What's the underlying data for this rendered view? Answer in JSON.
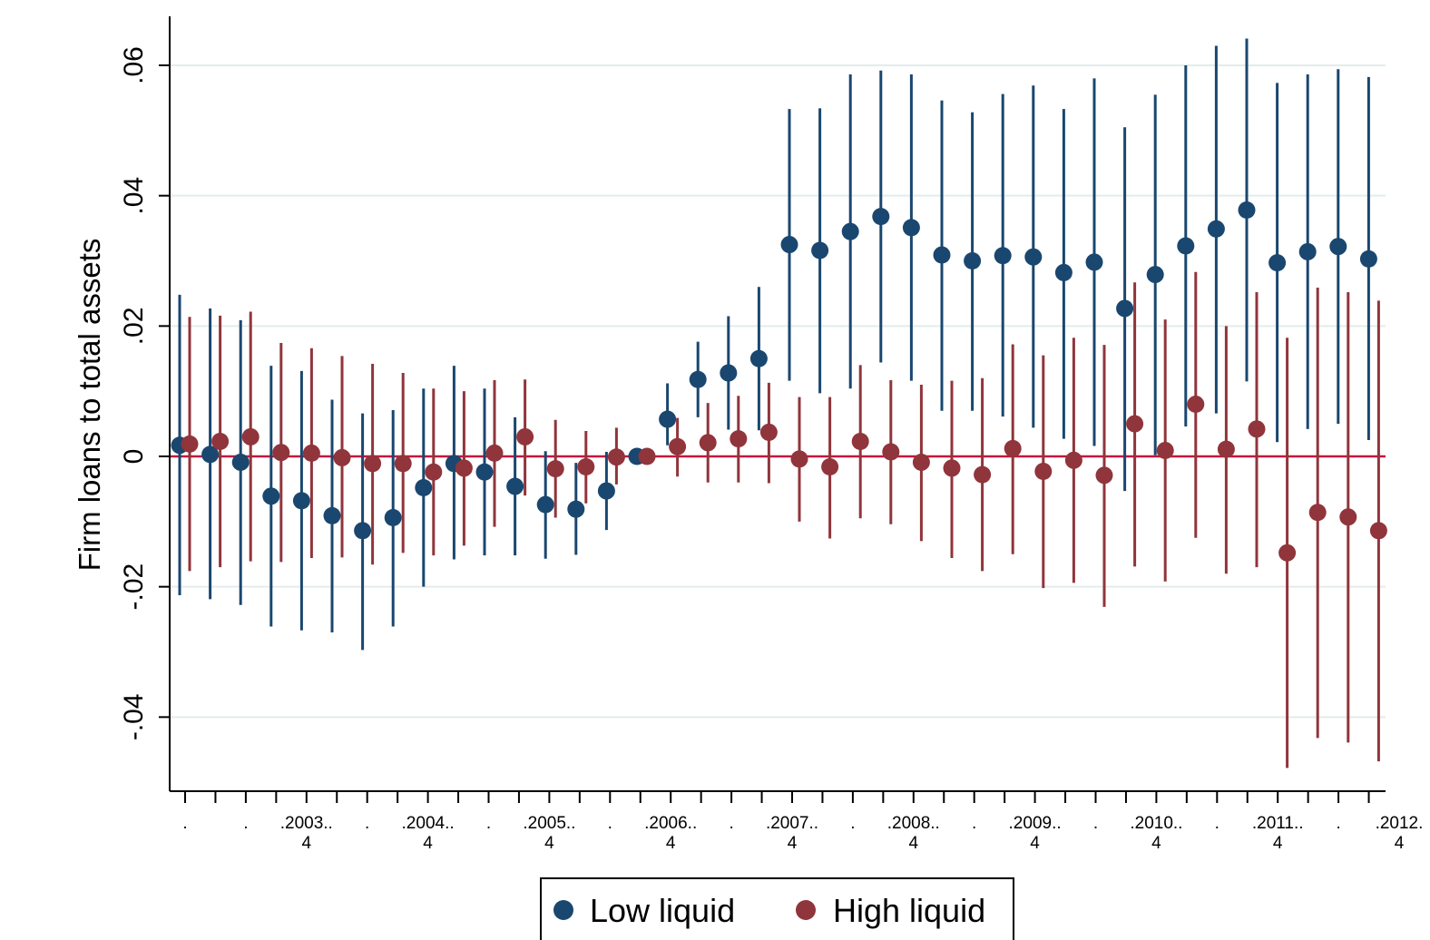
{
  "chart_data": {
    "type": "scatter",
    "title": "",
    "xlabel": "",
    "ylabel": "Firm loans to total assets",
    "ylim": [
      -0.052,
      0.067
    ],
    "yticks": [
      {
        "value": -0.04,
        "label": "-.04"
      },
      {
        "value": -0.02,
        "label": "-.02"
      },
      {
        "value": 0,
        "label": "0"
      },
      {
        "value": 0.02,
        "label": ".02"
      },
      {
        "value": 0.04,
        "label": ".04"
      },
      {
        "value": 0.06,
        "label": ".06"
      }
    ],
    "grid": true,
    "reference_line": 0,
    "x_tick_labels": [
      {
        "line1": ".",
        "line2": ""
      },
      {
        "line1": ".",
        "line2": ""
      },
      {
        "line1": ".2003..",
        "line2": "4"
      },
      {
        "line1": ".",
        "line2": ""
      },
      {
        "line1": ".2004..",
        "line2": "4"
      },
      {
        "line1": ".",
        "line2": ""
      },
      {
        "line1": ".2005..",
        "line2": "4"
      },
      {
        "line1": ".",
        "line2": ""
      },
      {
        "line1": ".2006..",
        "line2": "4"
      },
      {
        "line1": ".",
        "line2": ""
      },
      {
        "line1": ".2007..",
        "line2": "4"
      },
      {
        "line1": ".",
        "line2": ""
      },
      {
        "line1": ".2008..",
        "line2": "4"
      },
      {
        "line1": ".",
        "line2": ""
      },
      {
        "line1": ".2009..",
        "line2": "4"
      },
      {
        "line1": ".",
        "line2": ""
      },
      {
        "line1": ".2010..",
        "line2": "4"
      },
      {
        "line1": ".",
        "line2": ""
      },
      {
        "line1": ".2011..",
        "line2": "4"
      },
      {
        "line1": ".",
        "line2": ""
      },
      {
        "line1": ".2012.",
        "line2": "4"
      }
    ],
    "legend_position": "bottom",
    "colors": {
      "low": "#1a476f",
      "high": "#90353b",
      "reference": "#c4173e",
      "grid": "#e3ecec"
    },
    "series": [
      {
        "name": "Low liquid",
        "values": [
          0.0017,
          0.0003,
          -0.0009,
          -0.0061,
          -0.0068,
          -0.0091,
          -0.0114,
          -0.0094,
          -0.0048,
          -0.0011,
          -0.0024,
          -0.0046,
          -0.0074,
          -0.0081,
          -0.0053,
          0.0,
          0.0057,
          0.0118,
          0.0128,
          0.015,
          0.0325,
          0.0316,
          0.0345,
          0.0368,
          0.0351,
          0.0309,
          0.03,
          0.0308,
          0.0306,
          0.0282,
          0.0298,
          0.0227,
          0.0279,
          0.0323,
          0.0349,
          0.0378,
          0.0297,
          0.0314,
          0.0322,
          0.0303
        ],
        "lower": [
          -0.0213,
          -0.0219,
          -0.0228,
          -0.0261,
          -0.0267,
          -0.027,
          -0.0297,
          -0.0261,
          -0.02,
          -0.0158,
          -0.0152,
          -0.0152,
          -0.0157,
          -0.0151,
          -0.0113,
          0.0,
          0.0017,
          0.006,
          0.0041,
          0.004,
          0.0116,
          0.0097,
          0.0104,
          0.0144,
          0.0116,
          0.007,
          0.007,
          0.0061,
          0.0044,
          0.0027,
          0.0016,
          -0.0053,
          0.0002,
          0.0046,
          0.0066,
          0.0115,
          0.0022,
          0.0042,
          0.005,
          0.0025
        ],
        "upper": [
          0.0248,
          0.0227,
          0.0209,
          0.0139,
          0.0131,
          0.0087,
          0.0066,
          0.0071,
          0.0104,
          0.0139,
          0.0104,
          0.006,
          0.0008,
          -0.001,
          0.0007,
          0.0,
          0.0112,
          0.0176,
          0.0215,
          0.026,
          0.0533,
          0.0534,
          0.0586,
          0.0592,
          0.0586,
          0.0546,
          0.0528,
          0.0556,
          0.0569,
          0.0533,
          0.058,
          0.0505,
          0.0555,
          0.06,
          0.063,
          0.0641,
          0.0573,
          0.0586,
          0.0594,
          0.0582
        ]
      },
      {
        "name": "High liquid",
        "values": [
          0.0019,
          0.0023,
          0.003,
          0.0006,
          0.0005,
          -0.0002,
          -0.0011,
          -0.0011,
          -0.0024,
          -0.0018,
          0.0005,
          0.003,
          -0.0019,
          -0.0016,
          -0.0001,
          0.0,
          0.0015,
          0.0021,
          0.0027,
          0.0037,
          -0.0004,
          -0.0016,
          0.0023,
          0.0007,
          -0.0009,
          -0.0018,
          -0.0028,
          0.0012,
          -0.0023,
          -0.0006,
          -0.0029,
          0.005,
          0.0009,
          0.008,
          0.0011,
          0.0042,
          -0.0148,
          -0.0086,
          -0.0093,
          -0.0114
        ],
        "lower": [
          -0.0176,
          -0.017,
          -0.0161,
          -0.0162,
          -0.0156,
          -0.0155,
          -0.0166,
          -0.0148,
          -0.0152,
          -0.0137,
          -0.0108,
          -0.006,
          -0.0094,
          -0.0072,
          -0.0043,
          0.0,
          -0.0031,
          -0.004,
          -0.004,
          -0.0041,
          -0.01,
          -0.0126,
          -0.0095,
          -0.0104,
          -0.013,
          -0.0156,
          -0.0176,
          -0.015,
          -0.0202,
          -0.0194,
          -0.0231,
          -0.0169,
          -0.0192,
          -0.0125,
          -0.018,
          -0.017,
          -0.0478,
          -0.0432,
          -0.0439,
          -0.0468
        ],
        "upper": [
          0.0214,
          0.0216,
          0.0222,
          0.0174,
          0.0166,
          0.0154,
          0.0142,
          0.0128,
          0.0104,
          0.01,
          0.0117,
          0.0118,
          0.0056,
          0.0039,
          0.0044,
          0.0,
          0.0059,
          0.0082,
          0.0093,
          0.0113,
          0.0091,
          0.0091,
          0.014,
          0.0117,
          0.011,
          0.0116,
          0.012,
          0.0172,
          0.0155,
          0.0182,
          0.0171,
          0.0267,
          0.021,
          0.0283,
          0.02,
          0.0252,
          0.0182,
          0.0259,
          0.0252,
          0.0239
        ]
      }
    ]
  }
}
